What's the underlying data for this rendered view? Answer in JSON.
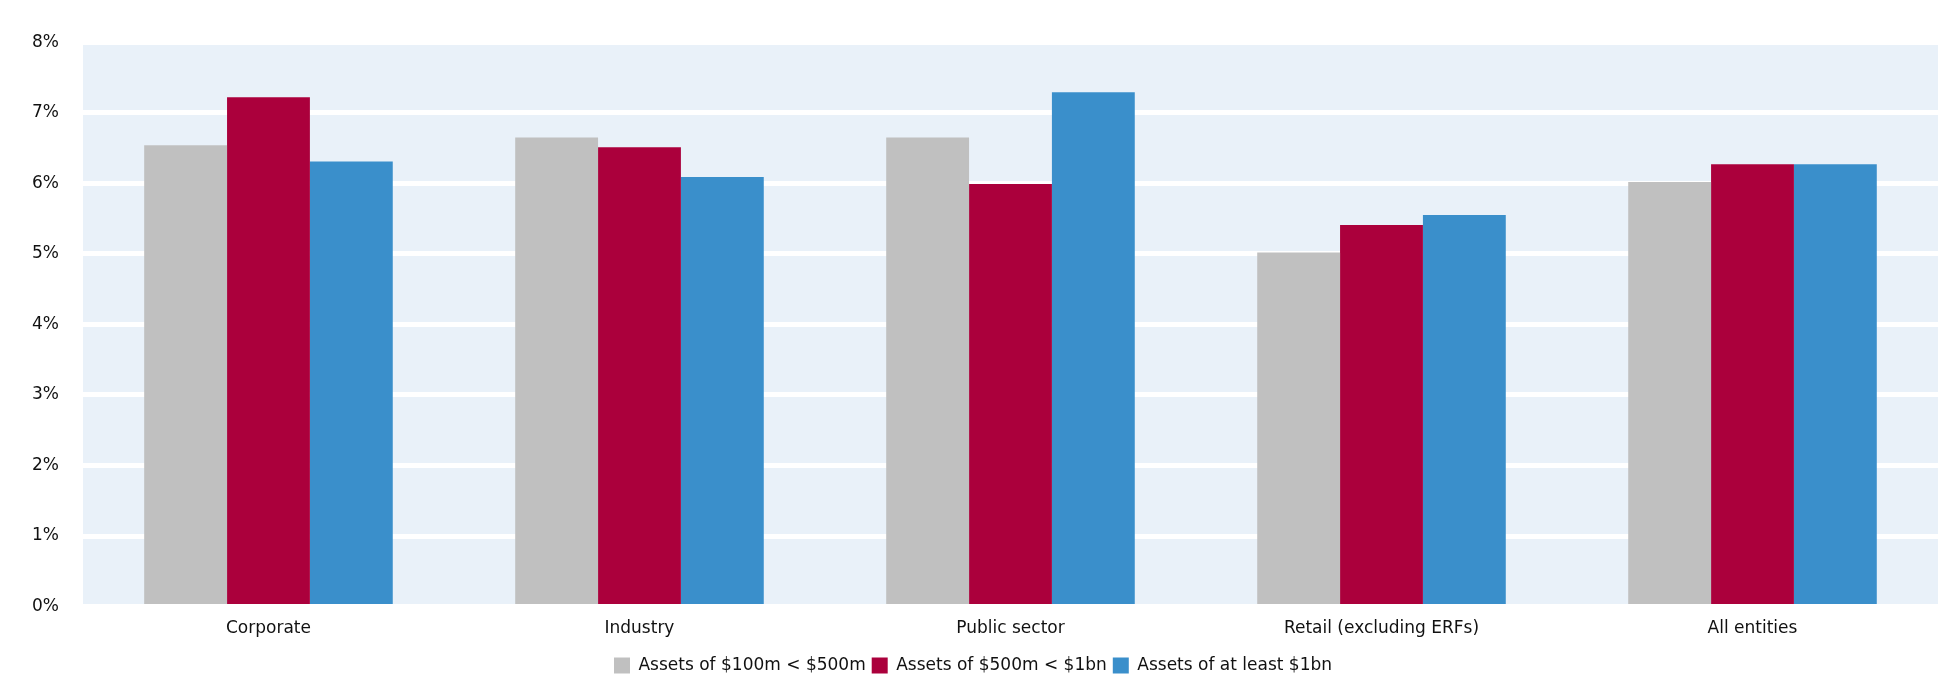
{
  "chart_data": {
    "type": "bar",
    "categories": [
      "Corporate",
      "Industry",
      "Public sector",
      "Retail (excluding ERFs)",
      "All entities"
    ],
    "series": [
      {
        "name": "Assets of $100m < $500m",
        "color": "#c0c0c0",
        "values": [
          6.54,
          6.65,
          6.65,
          5.02,
          6.02
        ]
      },
      {
        "name": "Assets of $500m < $1bn",
        "color": "#ab003c",
        "values": [
          7.22,
          6.51,
          5.99,
          5.41,
          6.27
        ]
      },
      {
        "name": "Assets of at least $1bn",
        "color": "#3a8fcb",
        "values": [
          6.31,
          6.09,
          7.29,
          5.55,
          6.27
        ]
      }
    ],
    "ylim": [
      0,
      8
    ],
    "yticks": [
      {
        "value": 0,
        "label": "0%"
      },
      {
        "value": 1,
        "label": "1%"
      },
      {
        "value": 2,
        "label": "2%"
      },
      {
        "value": 3,
        "label": "3%"
      },
      {
        "value": 4,
        "label": "4%"
      },
      {
        "value": 5,
        "label": "5%"
      },
      {
        "value": 6,
        "label": "6%"
      },
      {
        "value": 7,
        "label": "7%"
      },
      {
        "value": 8,
        "label": "8%"
      }
    ],
    "grid": "y",
    "legend": "bottom"
  }
}
